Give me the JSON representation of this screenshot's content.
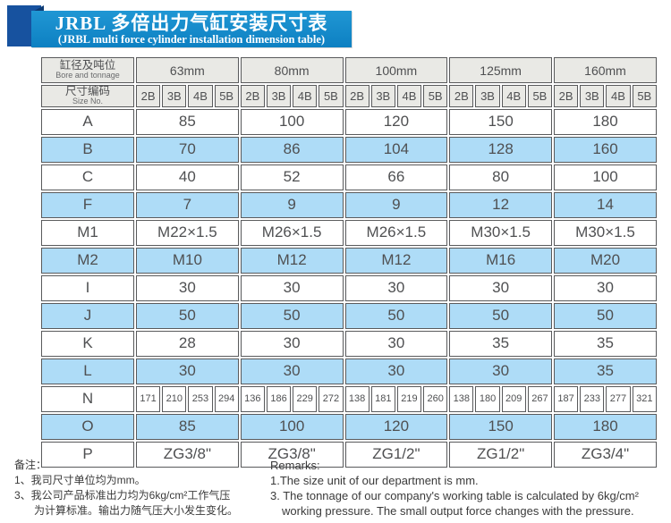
{
  "title": {
    "zh": "JRBL 多倍出力气缸安装尺寸表",
    "en": "(JRBL multi force cylinder installation dimension table)"
  },
  "table": {
    "corner_zh": "缸径及吨位",
    "corner_en": "Bore and tonnage",
    "size_no_zh": "尺寸编码",
    "size_no_en": "Size No.",
    "bores": [
      "63mm",
      "80mm",
      "100mm",
      "125mm",
      "160mm"
    ],
    "size_codes": [
      "2B",
      "3B",
      "4B",
      "5B"
    ],
    "rows": [
      {
        "label": "A",
        "values": [
          "85",
          "100",
          "120",
          "150",
          "180"
        ]
      },
      {
        "label": "B",
        "values": [
          "70",
          "86",
          "104",
          "128",
          "160"
        ]
      },
      {
        "label": "C",
        "values": [
          "40",
          "52",
          "66",
          "80",
          "100"
        ]
      },
      {
        "label": "F",
        "values": [
          "7",
          "9",
          "9",
          "12",
          "14"
        ]
      },
      {
        "label": "M1",
        "values": [
          "M22×1.5",
          "M26×1.5",
          "M26×1.5",
          "M30×1.5",
          "M30×1.5"
        ]
      },
      {
        "label": "M2",
        "values": [
          "M10",
          "M12",
          "M12",
          "M16",
          "M20"
        ]
      },
      {
        "label": "I",
        "values": [
          "30",
          "30",
          "30",
          "30",
          "30"
        ]
      },
      {
        "label": "J",
        "values": [
          "50",
          "50",
          "50",
          "50",
          "50"
        ]
      },
      {
        "label": "K",
        "values": [
          "28",
          "30",
          "30",
          "35",
          "35"
        ]
      },
      {
        "label": "L",
        "values": [
          "30",
          "30",
          "30",
          "30",
          "35"
        ]
      },
      {
        "label": "N",
        "cells": [
          "171",
          "210",
          "253",
          "294",
          "136",
          "186",
          "229",
          "272",
          "138",
          "181",
          "219",
          "260",
          "138",
          "180",
          "209",
          "267",
          "187",
          "233",
          "277",
          "321"
        ]
      },
      {
        "label": "O",
        "values": [
          "85",
          "100",
          "120",
          "150",
          "180"
        ]
      },
      {
        "label": "P",
        "values": [
          "ZG3/8\"",
          "ZG3/8\"",
          "ZG1/2\"",
          "ZG1/2\"",
          "ZG3/4\""
        ]
      }
    ]
  },
  "notes_zh": {
    "title": "备注：",
    "line1": "1、我司尺寸单位均为mm。",
    "line2": "3、我公司产品标准出力均为6kg/cm²工作气压",
    "line3": "为计算标准。输出力随气压大小发生变化。"
  },
  "notes_en": {
    "title": "Remarks:",
    "line1": "1.The size unit of our department is mm.",
    "line2": "3. The tonnage of our company's working table is calculated by 6kg/cm²",
    "line3": "working pressure. The small output force changes with the pressure."
  },
  "colors": {
    "banner_blue": "#0f86c8",
    "ribbon_blue": "#17529f",
    "row_blue": "#aedcf7",
    "header_gray": "#e9e9e5",
    "border_gray": "#595a5c"
  }
}
